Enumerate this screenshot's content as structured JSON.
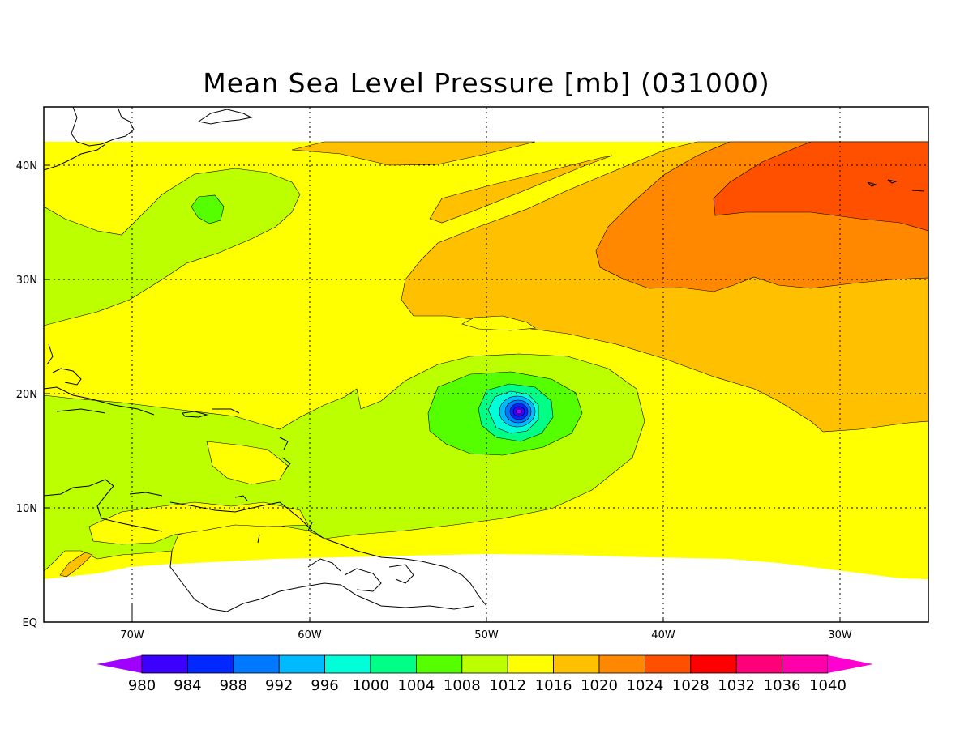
{
  "title": "Mean Sea Level Pressure [mb] (031000)",
  "axes": {
    "x_ticks": [
      "70W",
      "60W",
      "50W",
      "40W",
      "30W"
    ],
    "y_ticks": [
      "EQ",
      "10N",
      "20N",
      "30N",
      "40N"
    ]
  },
  "colorbar": {
    "labels": [
      "980",
      "984",
      "988",
      "992",
      "996",
      "1000",
      "1004",
      "1008",
      "1012",
      "1016",
      "1020",
      "1024",
      "1028",
      "1032",
      "1036",
      "1040"
    ],
    "colors": [
      "#a000ff",
      "#3c00ff",
      "#0028ff",
      "#0078ff",
      "#00baff",
      "#00ffd8",
      "#00ff86",
      "#56ff00",
      "#bbff00",
      "#ffff00",
      "#ffc000",
      "#ff8800",
      "#ff5000",
      "#ff0000",
      "#ff0078",
      "#ff00aa",
      "#ff00d2"
    ]
  },
  "fields": {
    "high_east_label": "high-pressure-1028",
    "low_center_label": "hurricane-low"
  }
}
